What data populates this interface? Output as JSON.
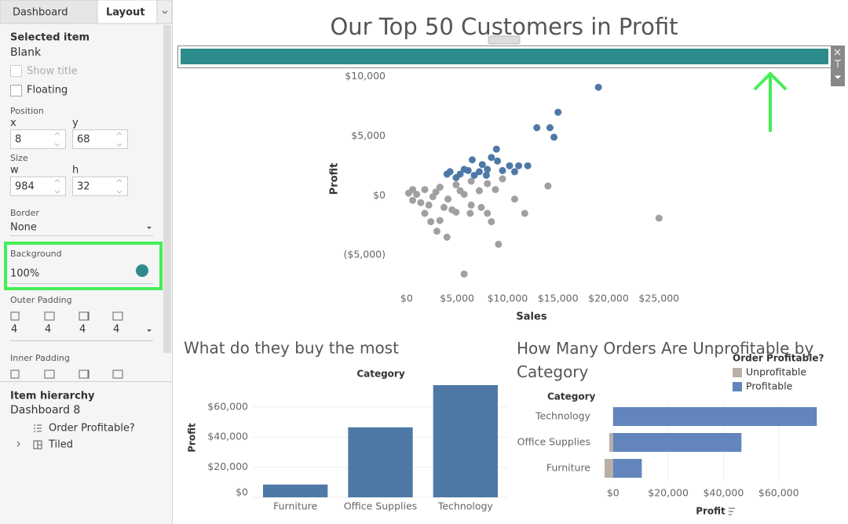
{
  "panel": {
    "tabs": [
      "Dashboard",
      "Layout"
    ],
    "selected_item": {
      "heading": "Selected item",
      "name": "Blank",
      "show_title": "Show title",
      "floating": "Floating"
    },
    "position": {
      "label": "Position",
      "x_label": "x",
      "y_label": "y",
      "x": 8,
      "y": 68
    },
    "size": {
      "label": "Size",
      "w_label": "w",
      "h_label": "h",
      "w": 984,
      "h": 32
    },
    "border": {
      "label": "Border",
      "value": "None"
    },
    "background": {
      "label": "Background",
      "value": "100%"
    },
    "outer_padding": {
      "label": "Outer Padding",
      "values": [
        4,
        4,
        4,
        4
      ]
    },
    "inner_padding": {
      "label": "Inner Padding"
    },
    "item_hierarchy": {
      "heading": "Item hierarchy",
      "root": "Dashboard 8",
      "children": [
        "Order Profitable?",
        "Tiled"
      ]
    }
  },
  "dashboard_title": "Our Top 50 Customers in Profit",
  "chart_data": [
    {
      "type": "scatter",
      "x_label": "Sales",
      "y_label": "Profit",
      "xlim": [
        -1000,
        27000
      ],
      "ylim": [
        -7500,
        10500
      ],
      "xticks": [
        {
          "value": 0,
          "label": "$0"
        },
        {
          "value": 5000,
          "label": "$5,000"
        },
        {
          "value": 10000,
          "label": "$10,000"
        },
        {
          "value": 15000,
          "label": "$15,000"
        },
        {
          "value": 20000,
          "label": "$20,000"
        },
        {
          "value": 25000,
          "label": "$25,000"
        }
      ],
      "yticks": [
        {
          "value": -5000,
          "label": "($5,000)"
        },
        {
          "value": 0,
          "label": "$0"
        },
        {
          "value": 5000,
          "label": "$5,000"
        },
        {
          "value": 10000,
          "label": "$10,000"
        }
      ],
      "series": [
        {
          "color": "#a0a0a0",
          "x": [
            14000,
            25000,
            5700,
            9100,
            4000,
            3000,
            2400,
            4900,
            6400,
            8000,
            8400,
            11700,
            10700,
            8800,
            7200,
            5700,
            4100,
            2600,
            1000,
            200,
            1800,
            3300,
            4900,
            6400,
            8000,
            2200,
            3700,
            1400,
            5300,
            2900,
            4500,
            7400,
            6300,
            3300,
            1800,
            600,
            600,
            9500
          ],
          "values": [
            800,
            -1900,
            -6600,
            -4100,
            -3500,
            -3000,
            -2200,
            -1400,
            -800,
            -1500,
            -2200,
            -1500,
            -300,
            500,
            400,
            100,
            -300,
            -100,
            100,
            200,
            500,
            700,
            900,
            1200,
            1000,
            -800,
            -1000,
            -600,
            400,
            300,
            -1200,
            -1000,
            -1500,
            -2100,
            -1500,
            -400,
            500,
            1400
          ]
        },
        {
          "color": "#4e79a7",
          "x": [
            19000,
            15000,
            12900,
            14200,
            14600,
            8900,
            6500,
            9000,
            12000,
            10700,
            4300,
            5300,
            6100,
            7200,
            8000,
            9500,
            11100,
            7500,
            8400,
            5700,
            4900,
            6700,
            4000,
            10200,
            7900
          ],
          "values": [
            9100,
            7000,
            5700,
            5700,
            4900,
            3900,
            3000,
            2900,
            2500,
            2000,
            2000,
            1800,
            2100,
            2000,
            2200,
            2100,
            2500,
            2600,
            3200,
            2200,
            1500,
            1700,
            1800,
            2500,
            1700
          ]
        }
      ]
    },
    {
      "type": "bar",
      "title": "What do they buy the most",
      "category_header": "Category",
      "y_label": "Profit",
      "categories": [
        "Furniture",
        "Office Supplies",
        "Technology"
      ],
      "values": [
        8500,
        46500,
        74500
      ],
      "color": "#4e79a7",
      "ylim": [
        0,
        75000
      ],
      "yticks": [
        {
          "value": 0,
          "label": "$0"
        },
        {
          "value": 20000,
          "label": "$20,000"
        },
        {
          "value": 40000,
          "label": "$40,000"
        },
        {
          "value": 60000,
          "label": "$60,000"
        }
      ],
      "grid": true
    },
    {
      "type": "hbar",
      "title": "How Many Orders Are Unprofitable by Category",
      "row_header": "Category",
      "legend_title": "Order Profitable?",
      "x_label": "Profit",
      "categories": [
        "Technology",
        "Office Supplies",
        "Furniture"
      ],
      "series": [
        {
          "name": "Unprofitable",
          "color": "#bab0a8",
          "values": [
            null,
            -1400,
            -3100
          ]
        },
        {
          "name": "Profitable",
          "color": "#6286bb",
          "values": [
            73800,
            46500,
            10400
          ]
        }
      ],
      "xlim": [
        -4500,
        76000
      ],
      "xticks": [
        {
          "value": 0,
          "label": "$0"
        },
        {
          "value": 20000,
          "label": "$20,000"
        },
        {
          "value": 40000,
          "label": "$40,000"
        },
        {
          "value": 60000,
          "label": "$60,000"
        }
      ],
      "grid": true
    }
  ]
}
